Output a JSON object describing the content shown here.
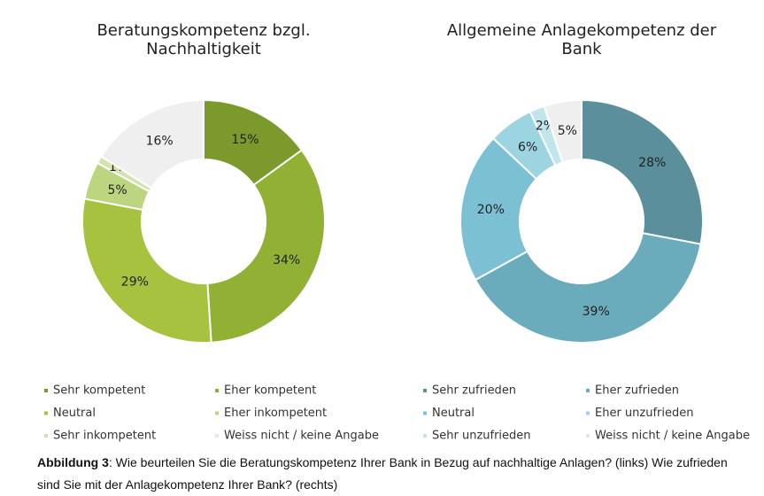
{
  "chart_data": [
    {
      "type": "donut",
      "title": "Beratungskompetenz bzgl. Nachhaltigkeit",
      "categories": [
        "Sehr kompetent",
        "Eher kompetent",
        "Neutral",
        "Eher inkompetent",
        "Sehr inkompetent",
        "Weiss nicht / keine Angabe"
      ],
      "values": [
        15,
        34,
        29,
        5,
        1,
        16
      ],
      "value_labels": [
        "15%",
        "34%",
        "29%",
        "5%",
        "1%",
        "16%"
      ],
      "colors": [
        "#7b9a2b",
        "#90b133",
        "#a6c23e",
        "#bcd57f",
        "#d4e3ae",
        "#efefef"
      ]
    },
    {
      "type": "donut",
      "title": "Allgemeine Anlagekompetenz der Bank",
      "categories": [
        "Sehr zufrieden",
        "Eher zufrieden",
        "Neutral",
        "Eher unzufrieden",
        "Sehr unzufrieden",
        "Weiss nicht / keine Angabe"
      ],
      "values": [
        28,
        39,
        20,
        6,
        2,
        5
      ],
      "value_labels": [
        "28%",
        "39%",
        "20%",
        "6%",
        "2%",
        "5%"
      ],
      "colors": [
        "#5b8f9b",
        "#6aacbc",
        "#7cc1d3",
        "#9dd4e2",
        "#c1e4ed",
        "#efefef"
      ]
    }
  ],
  "caption": {
    "label": "Abbildung 3",
    "text": ": Wie beurteilen Sie die Beratungskompetenz Ihrer Bank in Bezug auf nachhaltige Anlagen? (links) Wie zufrieden sind Sie mit der Anlagekompetenz Ihrer Bank? (rechts)"
  }
}
